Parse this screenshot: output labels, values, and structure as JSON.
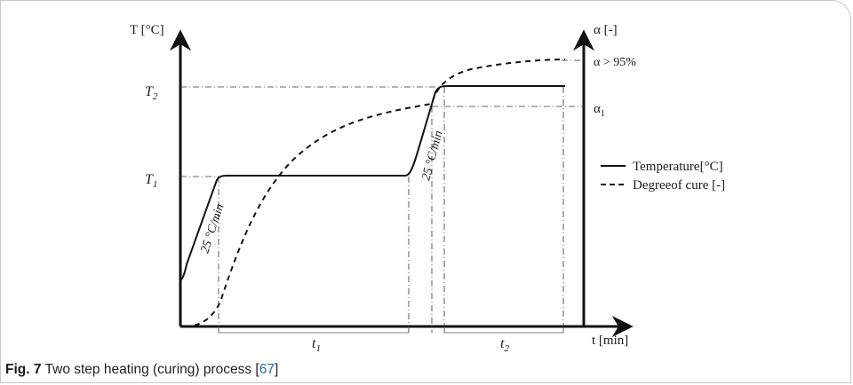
{
  "diagram": {
    "left_axis_label": "T [°C]",
    "right_axis_label": "α [-]",
    "x_axis_label": "t [min]",
    "t2_label": "T",
    "t2_sub": "2",
    "t1_label": "T",
    "t1_sub": "1",
    "alpha1_label": "α",
    "alpha1_sub": "1",
    "alpha95_label": "α > 95%",
    "time1_label": "t",
    "time1_sub": "1",
    "time2_label": "t",
    "time2_sub": "2",
    "rate_label_1": "25 °C/min",
    "rate_label_2": "25 °C/min",
    "legend_temperature": "Temperature[°C]",
    "legend_cure": "Degreeof cure [-]"
  },
  "caption": {
    "fig_label": "Fig. 7",
    "text": "Two step heating (curing) process [",
    "ref": "67",
    "close": "]"
  }
}
